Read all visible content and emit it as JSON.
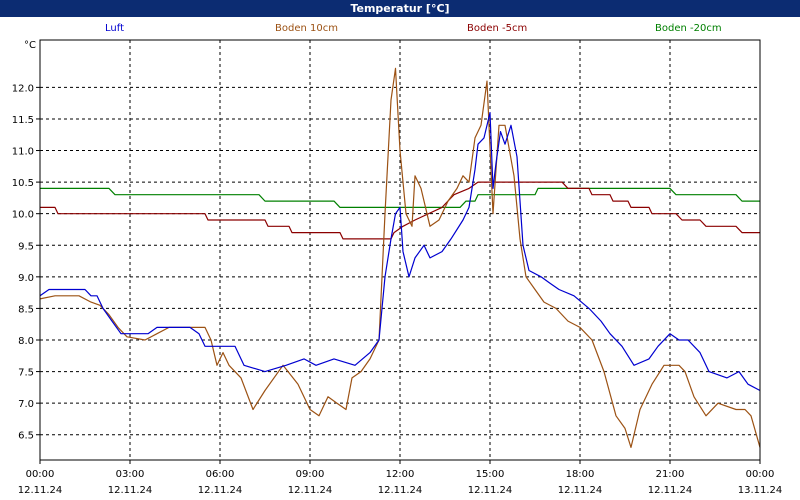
{
  "title": "Temperatur [°C]",
  "colors": {
    "title_bar": "#0c2c72",
    "luft": "#0000d0",
    "boden_10cm": "#9c5214",
    "boden_minus5cm": "#8b0000",
    "boden_minus20cm": "#008000"
  },
  "chart_data": {
    "type": "line",
    "title": "Temperatur [°C]",
    "y_unit": "°C",
    "ylim": [
      6.1,
      12.75
    ],
    "grid": true,
    "legend_position": "top",
    "y_ticks": [
      "6.5",
      "7.0",
      "7.5",
      "8.0",
      "8.5",
      "9.0",
      "9.5",
      "10.0",
      "10.5",
      "11.0",
      "11.5",
      "12.0"
    ],
    "x_ticks": [
      {
        "time": "00:00",
        "date": "12.11.24"
      },
      {
        "time": "03:00",
        "date": "12.11.24"
      },
      {
        "time": "06:00",
        "date": "12.11.24"
      },
      {
        "time": "09:00",
        "date": "12.11.24"
      },
      {
        "time": "12:00",
        "date": "12.11.24"
      },
      {
        "time": "15:00",
        "date": "12.11.24"
      },
      {
        "time": "18:00",
        "date": "12.11.24"
      },
      {
        "time": "21:00",
        "date": "12.11.24"
      },
      {
        "time": "00:00",
        "date": "13.11.24"
      }
    ],
    "x_unit": "hours",
    "xlim": [
      0,
      24
    ],
    "series": [
      {
        "name": "Luft",
        "color": "#0000d0",
        "points": [
          [
            0,
            8.7
          ],
          [
            0.3,
            8.8
          ],
          [
            1.5,
            8.8
          ],
          [
            1.7,
            8.7
          ],
          [
            1.9,
            8.7
          ],
          [
            2.1,
            8.5
          ],
          [
            2.4,
            8.3
          ],
          [
            2.7,
            8.1
          ],
          [
            3.6,
            8.1
          ],
          [
            3.9,
            8.2
          ],
          [
            5.0,
            8.2
          ],
          [
            5.3,
            8.1
          ],
          [
            5.5,
            7.9
          ],
          [
            6.5,
            7.9
          ],
          [
            6.8,
            7.6
          ],
          [
            7.5,
            7.5
          ],
          [
            8.2,
            7.6
          ],
          [
            8.8,
            7.7
          ],
          [
            9.2,
            7.6
          ],
          [
            9.8,
            7.7
          ],
          [
            10.5,
            7.6
          ],
          [
            11.0,
            7.8
          ],
          [
            11.3,
            8.0
          ],
          [
            11.5,
            9.0
          ],
          [
            11.7,
            9.6
          ],
          [
            11.85,
            10.0
          ],
          [
            12.0,
            10.1
          ],
          [
            12.1,
            9.4
          ],
          [
            12.3,
            9.0
          ],
          [
            12.5,
            9.3
          ],
          [
            12.8,
            9.5
          ],
          [
            13.0,
            9.3
          ],
          [
            13.4,
            9.4
          ],
          [
            13.7,
            9.6
          ],
          [
            14.1,
            9.9
          ],
          [
            14.3,
            10.1
          ],
          [
            14.5,
            10.7
          ],
          [
            14.6,
            11.1
          ],
          [
            14.8,
            11.2
          ],
          [
            15.0,
            11.6
          ],
          [
            15.1,
            10.4
          ],
          [
            15.2,
            10.8
          ],
          [
            15.35,
            11.3
          ],
          [
            15.5,
            11.1
          ],
          [
            15.7,
            11.4
          ],
          [
            15.9,
            10.9
          ],
          [
            16.1,
            9.5
          ],
          [
            16.3,
            9.1
          ],
          [
            16.7,
            9.0
          ],
          [
            17.0,
            8.9
          ],
          [
            17.3,
            8.8
          ],
          [
            17.8,
            8.7
          ],
          [
            18.3,
            8.5
          ],
          [
            18.7,
            8.3
          ],
          [
            19.0,
            8.1
          ],
          [
            19.4,
            7.9
          ],
          [
            19.8,
            7.6
          ],
          [
            20.3,
            7.7
          ],
          [
            20.6,
            7.9
          ],
          [
            21.0,
            8.1
          ],
          [
            21.3,
            8.0
          ],
          [
            21.6,
            8.0
          ],
          [
            22.0,
            7.8
          ],
          [
            22.3,
            7.5
          ],
          [
            22.9,
            7.4
          ],
          [
            23.3,
            7.5
          ],
          [
            23.6,
            7.3
          ],
          [
            24.0,
            7.2
          ]
        ]
      },
      {
        "name": "Boden 10cm",
        "color": "#9c5214",
        "points": [
          [
            0,
            8.65
          ],
          [
            0.5,
            8.7
          ],
          [
            1.3,
            8.7
          ],
          [
            1.7,
            8.6
          ],
          [
            2.0,
            8.55
          ],
          [
            2.3,
            8.4
          ],
          [
            2.6,
            8.2
          ],
          [
            2.9,
            8.05
          ],
          [
            3.5,
            8.0
          ],
          [
            3.9,
            8.1
          ],
          [
            4.3,
            8.2
          ],
          [
            5.5,
            8.2
          ],
          [
            5.7,
            8.0
          ],
          [
            5.9,
            7.6
          ],
          [
            6.1,
            7.8
          ],
          [
            6.3,
            7.6
          ],
          [
            6.7,
            7.4
          ],
          [
            7.1,
            6.9
          ],
          [
            7.5,
            7.2
          ],
          [
            8.1,
            7.6
          ],
          [
            8.6,
            7.3
          ],
          [
            9.0,
            6.9
          ],
          [
            9.3,
            6.8
          ],
          [
            9.6,
            7.1
          ],
          [
            9.9,
            7.0
          ],
          [
            10.2,
            6.9
          ],
          [
            10.4,
            7.4
          ],
          [
            10.7,
            7.5
          ],
          [
            11.0,
            7.7
          ],
          [
            11.3,
            8.0
          ],
          [
            11.5,
            10.0
          ],
          [
            11.7,
            11.8
          ],
          [
            11.85,
            12.3
          ],
          [
            12.0,
            11.0
          ],
          [
            12.2,
            10.0
          ],
          [
            12.4,
            9.8
          ],
          [
            12.5,
            10.6
          ],
          [
            12.7,
            10.4
          ],
          [
            13.0,
            9.8
          ],
          [
            13.3,
            9.9
          ],
          [
            13.6,
            10.2
          ],
          [
            13.9,
            10.4
          ],
          [
            14.1,
            10.6
          ],
          [
            14.3,
            10.5
          ],
          [
            14.5,
            11.2
          ],
          [
            14.7,
            11.4
          ],
          [
            14.9,
            12.1
          ],
          [
            15.1,
            10.0
          ],
          [
            15.3,
            11.4
          ],
          [
            15.5,
            11.4
          ],
          [
            15.8,
            10.6
          ],
          [
            16.0,
            9.6
          ],
          [
            16.2,
            9.0
          ],
          [
            16.5,
            8.8
          ],
          [
            16.8,
            8.6
          ],
          [
            17.2,
            8.5
          ],
          [
            17.6,
            8.3
          ],
          [
            18.0,
            8.2
          ],
          [
            18.4,
            8.0
          ],
          [
            18.8,
            7.5
          ],
          [
            19.2,
            6.8
          ],
          [
            19.5,
            6.6
          ],
          [
            19.7,
            6.3
          ],
          [
            20.0,
            6.9
          ],
          [
            20.4,
            7.3
          ],
          [
            20.8,
            7.6
          ],
          [
            21.3,
            7.6
          ],
          [
            21.5,
            7.5
          ],
          [
            21.8,
            7.1
          ],
          [
            22.2,
            6.8
          ],
          [
            22.6,
            7.0
          ],
          [
            23.2,
            6.9
          ],
          [
            23.5,
            6.9
          ],
          [
            23.7,
            6.8
          ],
          [
            24.0,
            6.3
          ]
        ]
      },
      {
        "name": "Boden -5cm",
        "color": "#8b0000",
        "points": [
          [
            0,
            10.1
          ],
          [
            0.5,
            10.1
          ],
          [
            0.6,
            10.0
          ],
          [
            5.5,
            10.0
          ],
          [
            5.6,
            9.9
          ],
          [
            7.5,
            9.9
          ],
          [
            7.6,
            9.8
          ],
          [
            8.3,
            9.8
          ],
          [
            8.4,
            9.7
          ],
          [
            10.0,
            9.7
          ],
          [
            10.1,
            9.6
          ],
          [
            11.7,
            9.6
          ],
          [
            11.8,
            9.7
          ],
          [
            12.1,
            9.8
          ],
          [
            12.5,
            9.9
          ],
          [
            13.4,
            10.1
          ],
          [
            13.8,
            10.3
          ],
          [
            14.3,
            10.4
          ],
          [
            14.6,
            10.5
          ],
          [
            15.6,
            10.5
          ],
          [
            15.8,
            10.5
          ],
          [
            17.4,
            10.5
          ],
          [
            17.6,
            10.4
          ],
          [
            18.3,
            10.4
          ],
          [
            18.4,
            10.3
          ],
          [
            19.0,
            10.3
          ],
          [
            19.1,
            10.2
          ],
          [
            19.6,
            10.2
          ],
          [
            19.7,
            10.1
          ],
          [
            20.3,
            10.1
          ],
          [
            20.4,
            10.0
          ],
          [
            21.2,
            10.0
          ],
          [
            21.4,
            9.9
          ],
          [
            22.0,
            9.9
          ],
          [
            22.2,
            9.8
          ],
          [
            23.2,
            9.8
          ],
          [
            23.4,
            9.7
          ],
          [
            24.0,
            9.7
          ]
        ]
      },
      {
        "name": "Boden -20cm",
        "color": "#008000",
        "points": [
          [
            0,
            10.4
          ],
          [
            2.3,
            10.4
          ],
          [
            2.5,
            10.3
          ],
          [
            7.3,
            10.3
          ],
          [
            7.5,
            10.2
          ],
          [
            9.8,
            10.2
          ],
          [
            10.0,
            10.1
          ],
          [
            14.0,
            10.1
          ],
          [
            14.2,
            10.2
          ],
          [
            14.5,
            10.2
          ],
          [
            14.6,
            10.3
          ],
          [
            16.5,
            10.3
          ],
          [
            16.6,
            10.4
          ],
          [
            21.0,
            10.4
          ],
          [
            21.2,
            10.3
          ],
          [
            23.2,
            10.3
          ],
          [
            23.4,
            10.2
          ],
          [
            24.0,
            10.2
          ]
        ]
      }
    ]
  }
}
